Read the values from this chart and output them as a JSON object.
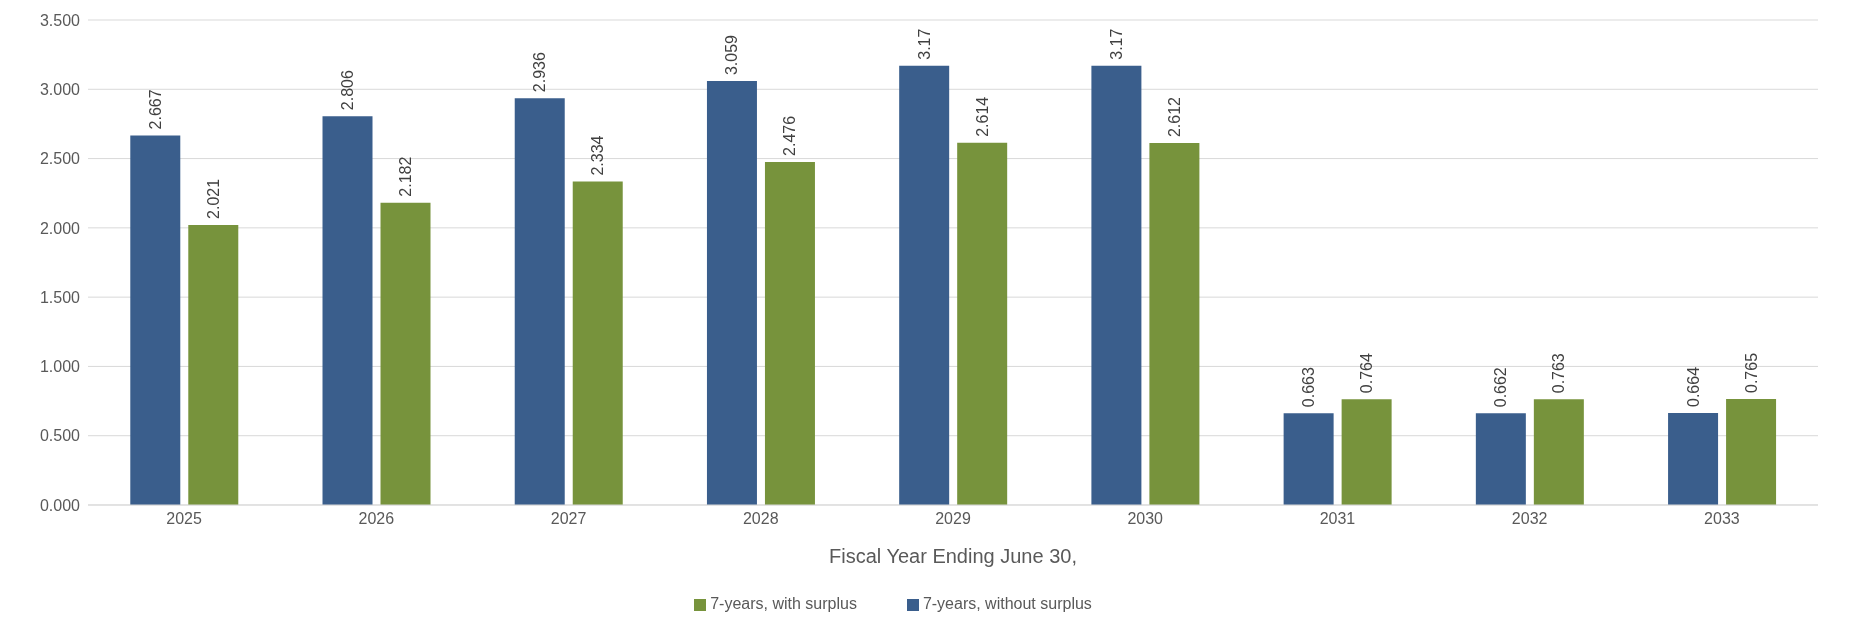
{
  "chart_data": {
    "type": "bar",
    "xlabel": "Fiscal Year Ending June 30,",
    "categories": [
      "2025",
      "2026",
      "2027",
      "2028",
      "2029",
      "2030",
      "2031",
      "2032",
      "2033"
    ],
    "series": [
      {
        "name": "7-years, without surplus",
        "color": "#3a5e8c",
        "values": [
          2.667,
          2.806,
          2.936,
          3.059,
          3.17,
          3.17,
          0.663,
          0.662,
          0.664
        ]
      },
      {
        "name": "7-years, with surplus",
        "color": "#77933c",
        "values": [
          2.021,
          2.182,
          2.334,
          2.476,
          2.614,
          2.612,
          0.764,
          0.763,
          0.765
        ]
      }
    ],
    "ylim": [
      0,
      3.5
    ],
    "yticks": [
      {
        "value": 0,
        "label": "0.000"
      },
      {
        "value": 0.5,
        "label": "0.500"
      },
      {
        "value": 1,
        "label": "1.000"
      },
      {
        "value": 1.5,
        "label": "1.500"
      },
      {
        "value": 2,
        "label": "2.000"
      },
      {
        "value": 2.5,
        "label": "2.500"
      },
      {
        "value": 3,
        "label": "3.000"
      },
      {
        "value": 3.5,
        "label": "3.500"
      }
    ],
    "grid": "y",
    "legend": "bottom",
    "data_labels": true
  }
}
